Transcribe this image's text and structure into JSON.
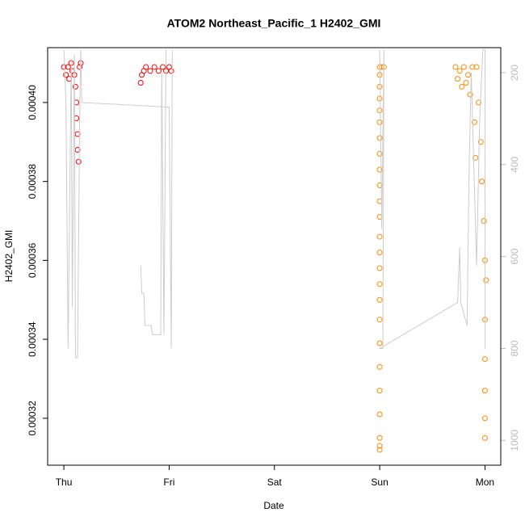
{
  "chart_data": {
    "type": "scatter",
    "title": "ATOM2 Northeast_Pacific_1 H2402_GMI",
    "x_label": "Date",
    "y_label": "H2402_GMI",
    "xlim": [
      -0.154,
      4.15
    ],
    "xticks": [
      {
        "value": 0,
        "label": "Thu"
      },
      {
        "value": 1,
        "label": "Fri"
      },
      {
        "value": 2,
        "label": "Sat"
      },
      {
        "value": 3,
        "label": "Sun"
      },
      {
        "value": 4,
        "label": "Mon"
      }
    ],
    "ylim": [
      0.0003081,
      0.0004139
    ],
    "yticks": [
      {
        "value": 0.00032,
        "label": "0.00032"
      },
      {
        "value": 0.00034,
        "label": "0.00034"
      },
      {
        "value": 0.00036,
        "label": "0.00036"
      },
      {
        "value": 0.00038,
        "label": "0.00038"
      },
      {
        "value": 0.0004,
        "label": "0.00040"
      }
    ],
    "y2lim": [
      1054,
      145.6
    ],
    "y2ticks": [
      200,
      400,
      600,
      800,
      1000
    ],
    "y2_color": "#bbbbbb",
    "series": [
      {
        "color": "#ff0000",
        "x": [
          0.0,
          0.02,
          0.04,
          0.05,
          0.07,
          0.08,
          0.1,
          0.11,
          0.12,
          0.12,
          0.13,
          0.13,
          0.14,
          0.15,
          0.16,
          0.73,
          0.74,
          0.76,
          0.78,
          0.82,
          0.86,
          0.9,
          0.94,
          0.97,
          1.0,
          1.02
        ],
        "values": [
          0.000409,
          0.000407,
          0.000409,
          0.000406,
          0.00041,
          0.000408,
          0.000407,
          0.000404,
          0.0004,
          0.000396,
          0.000392,
          0.000388,
          0.000385,
          0.000409,
          0.00041,
          0.000405,
          0.000407,
          0.000408,
          0.000409,
          0.000408,
          0.000409,
          0.000408,
          0.000409,
          0.000408,
          0.000409,
          0.000408
        ]
      },
      {
        "color": "#ff8c00",
        "x": [
          3.0,
          3.0,
          3.0,
          3.0,
          3.0,
          3.0,
          3.0,
          3.0,
          3.0,
          3.0,
          3.0,
          3.0,
          3.0,
          3.0,
          3.0,
          3.0,
          3.0,
          3.0,
          3.0,
          3.0,
          3.0,
          3.0,
          3.0,
          3.0,
          3.0,
          3.02,
          3.04,
          3.72,
          3.74,
          3.76,
          3.78,
          3.8,
          3.82,
          3.84,
          3.86,
          3.88,
          3.9,
          3.91,
          3.92,
          3.94,
          3.96,
          3.97,
          3.99,
          4.0,
          4.01,
          4.0,
          4.0,
          4.0,
          4.0,
          4.0
        ],
        "values": [
          0.000312,
          0.000313,
          0.000315,
          0.000321,
          0.000327,
          0.000333,
          0.000339,
          0.000345,
          0.00035,
          0.000354,
          0.000358,
          0.000362,
          0.000366,
          0.000371,
          0.000375,
          0.000379,
          0.000383,
          0.000387,
          0.000391,
          0.000395,
          0.000398,
          0.000401,
          0.000404,
          0.000407,
          0.000409,
          0.000409,
          0.000409,
          0.000409,
          0.000406,
          0.000408,
          0.000404,
          0.000409,
          0.000405,
          0.000407,
          0.000402,
          0.000409,
          0.000395,
          0.000386,
          0.000409,
          0.0004,
          0.00039,
          0.00038,
          0.00037,
          0.00036,
          0.000355,
          0.000345,
          0.000335,
          0.000327,
          0.00032,
          0.000315
        ]
      },
      {
        "type": "line",
        "axis": "y2",
        "color": "#cccccc",
        "x": [
          0.0,
          0.02,
          0.04,
          0.07,
          0.08,
          0.1,
          0.11,
          0.13,
          0.15,
          0.16,
          0.17,
          1.0,
          1.02,
          1.03,
          null,
          0.73,
          0.74,
          0.76,
          0.77,
          0.83,
          0.84,
          0.92,
          0.93,
          0.95,
          0.97,
          null,
          3.0,
          3.02,
          3.04,
          3.03,
          3.0,
          3.74,
          3.76,
          3.77,
          3.83,
          3.85,
          3.87,
          3.92,
          3.95,
          3.98,
          4.0,
          4.0
        ],
        "values": [
          150,
          265,
          800,
          170,
          710,
          160,
          820,
          820,
          300,
          150,
          265,
          275,
          800,
          150,
          null,
          620,
          680,
          680,
          750,
          750,
          770,
          770,
          200,
          770,
          150,
          null,
          150,
          540,
          150,
          800,
          800,
          700,
          580,
          700,
          750,
          400,
          200,
          620,
          300,
          150,
          150,
          800
        ]
      }
    ]
  }
}
